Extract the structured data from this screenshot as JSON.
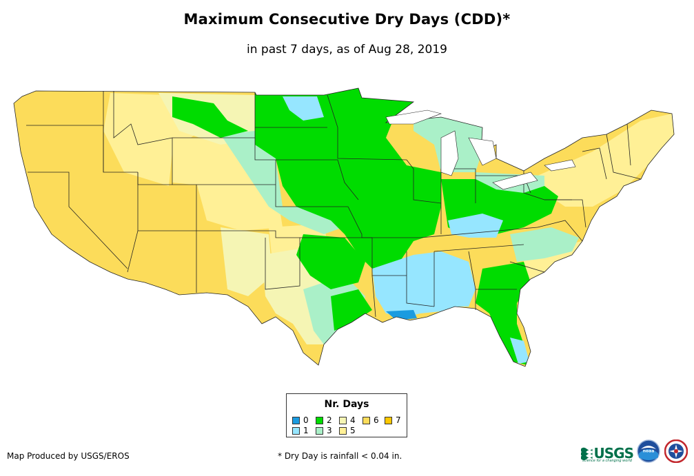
{
  "header": {
    "title": "Maximum Consecutive Dry Days (CDD)*",
    "subtitle": "in past 7 days, as of Aug 28, 2019"
  },
  "legend": {
    "title": "Nr. Days",
    "items": [
      {
        "label": "0",
        "color": "#1a9be0"
      },
      {
        "label": "1",
        "color": "#96e6ff"
      },
      {
        "label": "2",
        "color": "#00dc00"
      },
      {
        "label": "3",
        "color": "#aaf0c8"
      },
      {
        "label": "4",
        "color": "#f5f5b4"
      },
      {
        "label": "5",
        "color": "#fff096"
      },
      {
        "label": "6",
        "color": "#fcdc5a"
      },
      {
        "label": "7",
        "color": "#ffc800"
      }
    ]
  },
  "footer": {
    "credit": "Map Produced by USGS/EROS",
    "note": "* Dry Day is rainfall < 0.04 in."
  },
  "logos": {
    "usgs": "USGS",
    "usgs_tagline": "science for a changing world",
    "noaa": "noaa",
    "nws": "national-weather-service-logo"
  }
}
